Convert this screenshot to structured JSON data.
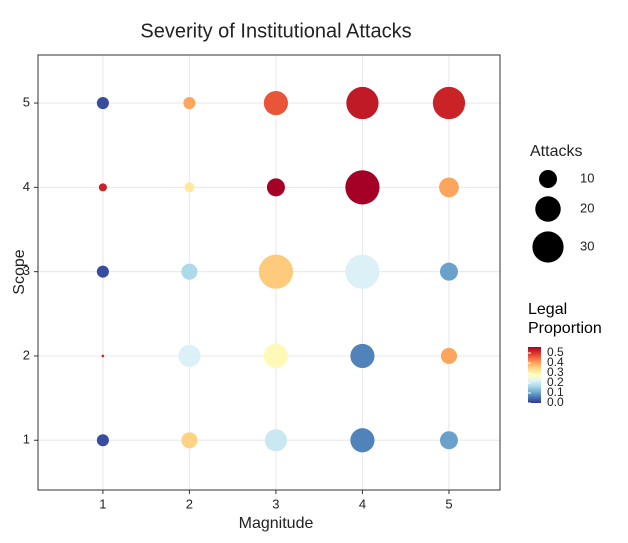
{
  "chart_data": {
    "type": "scatter",
    "title": "Severity of Institutional Attacks",
    "x_label": "Magnitude",
    "y_label": "Scope",
    "x": [
      1,
      2,
      3,
      4,
      5,
      1,
      2,
      3,
      4,
      5,
      1,
      2,
      3,
      4,
      5,
      1,
      2,
      3,
      4,
      5,
      1,
      2,
      3,
      4,
      5
    ],
    "y": [
      5,
      5,
      5,
      5,
      5,
      4,
      4,
      4,
      4,
      4,
      3,
      3,
      3,
      3,
      3,
      2,
      2,
      2,
      2,
      2,
      1,
      1,
      1,
      1,
      1
    ],
    "sizes": [
      4.5,
      4.5,
      18,
      32,
      32,
      2,
      3,
      10,
      36,
      12,
      4.5,
      8,
      36,
      36,
      10,
      0.2,
      15,
      18,
      18,
      8,
      4.5,
      8,
      15,
      18,
      10
    ],
    "legal_proportion": [
      0.02,
      0.4,
      0.47,
      0.53,
      0.52,
      0.52,
      0.32,
      0.56,
      0.56,
      0.4,
      0.02,
      0.17,
      0.36,
      0.22,
      0.1,
      0.52,
      0.22,
      0.29,
      0.07,
      0.4,
      0.02,
      0.35,
      0.2,
      0.07,
      0.1
    ],
    "xlim": [
      0.25,
      5.59
    ],
    "ylim": [
      0.41,
      5.57
    ],
    "xticks": [
      1,
      2,
      3,
      4,
      5
    ],
    "yticks": [
      1,
      2,
      3,
      4,
      5
    ],
    "grid": true,
    "size_legend": {
      "title": "Attacks",
      "values": [
        10,
        20,
        30
      ]
    },
    "color_legend": {
      "title": "Legal Proportion",
      "clim": [
        0,
        0.56
      ],
      "ticks": [
        {
          "value": 0,
          "label": "0.0"
        },
        0.1,
        0.2,
        0.3,
        0.4,
        0.5
      ],
      "colormap": [
        "#313695",
        "#4575b4",
        "#74add1",
        "#abd9e9",
        "#e0f3f8",
        "#ffffbf",
        "#fee090",
        "#fdae61",
        "#f46d43",
        "#d73027",
        "#a50026"
      ]
    }
  }
}
